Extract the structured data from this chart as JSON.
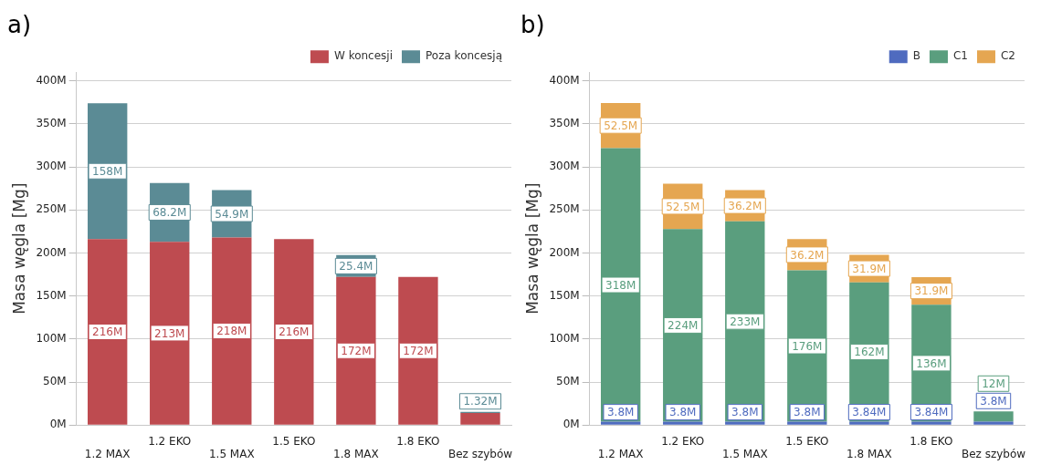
{
  "chart_data": [
    {
      "type": "bar",
      "title": "a)",
      "stacked": true,
      "legend": "top right",
      "grid": "y",
      "ylabel": "Masa węgla [Mg]",
      "categories": [
        "1.2 MAX",
        "1.2 EKO",
        "1.5 MAX",
        "1.5 EKO",
        "1.8 MAX",
        "1.8 EKO",
        "Bez szybów"
      ],
      "ylim": [
        0,
        410
      ],
      "yticks": [
        {
          "value": 0,
          "label": "0M"
        },
        {
          "value": 50,
          "label": "50M"
        },
        {
          "value": 100,
          "label": "100M"
        },
        {
          "value": 150,
          "label": "150M"
        },
        {
          "value": 200,
          "label": "200M"
        },
        {
          "value": 250,
          "label": "250M"
        },
        {
          "value": 300,
          "label": "300M"
        },
        {
          "value": 350,
          "label": "350M"
        },
        {
          "value": 400,
          "label": "400M"
        }
      ],
      "series": [
        {
          "name": "W koncesji",
          "color": "#be4b50",
          "values": [
            216,
            213,
            218,
            216,
            172,
            172,
            14
          ],
          "value_labels": [
            "216M",
            "213M",
            "218M",
            "216M",
            "172M",
            "172M",
            null
          ]
        },
        {
          "name": "Poza koncesją",
          "color": "#5b8b95",
          "values": [
            158,
            68.2,
            54.9,
            null,
            25.4,
            null,
            1.32
          ],
          "value_labels": [
            "158M",
            "68.2M",
            "54.9M",
            null,
            "25.4M",
            null,
            "1.32M"
          ]
        }
      ]
    },
    {
      "type": "bar",
      "title": "b)",
      "stacked": true,
      "legend": "top right",
      "grid": "y",
      "ylabel": "Masa węgla [Mg]",
      "categories": [
        "1.2 MAX",
        "1.2 EKO",
        "1.5 MAX",
        "1.5 EKO",
        "1.8 MAX",
        "1.8 EKO",
        "Bez szybów"
      ],
      "ylim": [
        0,
        410
      ],
      "yticks": [
        {
          "value": 0,
          "label": "0M"
        },
        {
          "value": 50,
          "label": "50M"
        },
        {
          "value": 100,
          "label": "100M"
        },
        {
          "value": 150,
          "label": "150M"
        },
        {
          "value": 200,
          "label": "200M"
        },
        {
          "value": 250,
          "label": "250M"
        },
        {
          "value": 300,
          "label": "300M"
        },
        {
          "value": 350,
          "label": "350M"
        },
        {
          "value": 400,
          "label": "400M"
        }
      ],
      "series": [
        {
          "name": "B",
          "color": "#4f6bbf",
          "values": [
            3.8,
            3.8,
            3.8,
            3.8,
            3.84,
            3.84,
            3.8
          ],
          "value_labels": [
            "3.8M",
            "3.8M",
            "3.8M",
            "3.8M",
            "3.84M",
            "3.84M",
            "3.8M"
          ]
        },
        {
          "name": "C1",
          "color": "#5a9e7e",
          "values": [
            318,
            224,
            233,
            176,
            162,
            136,
            12
          ],
          "value_labels": [
            "318M",
            "224M",
            "233M",
            "176M",
            "162M",
            "136M",
            "12M"
          ]
        },
        {
          "name": "C2",
          "color": "#e5a651",
          "values": [
            52.5,
            52.5,
            36.2,
            36.2,
            31.9,
            31.9,
            null
          ],
          "value_labels": [
            "52.5M",
            "52.5M",
            "36.2M",
            "36.2M",
            "31.9M",
            "31.9M",
            null
          ]
        }
      ]
    }
  ]
}
